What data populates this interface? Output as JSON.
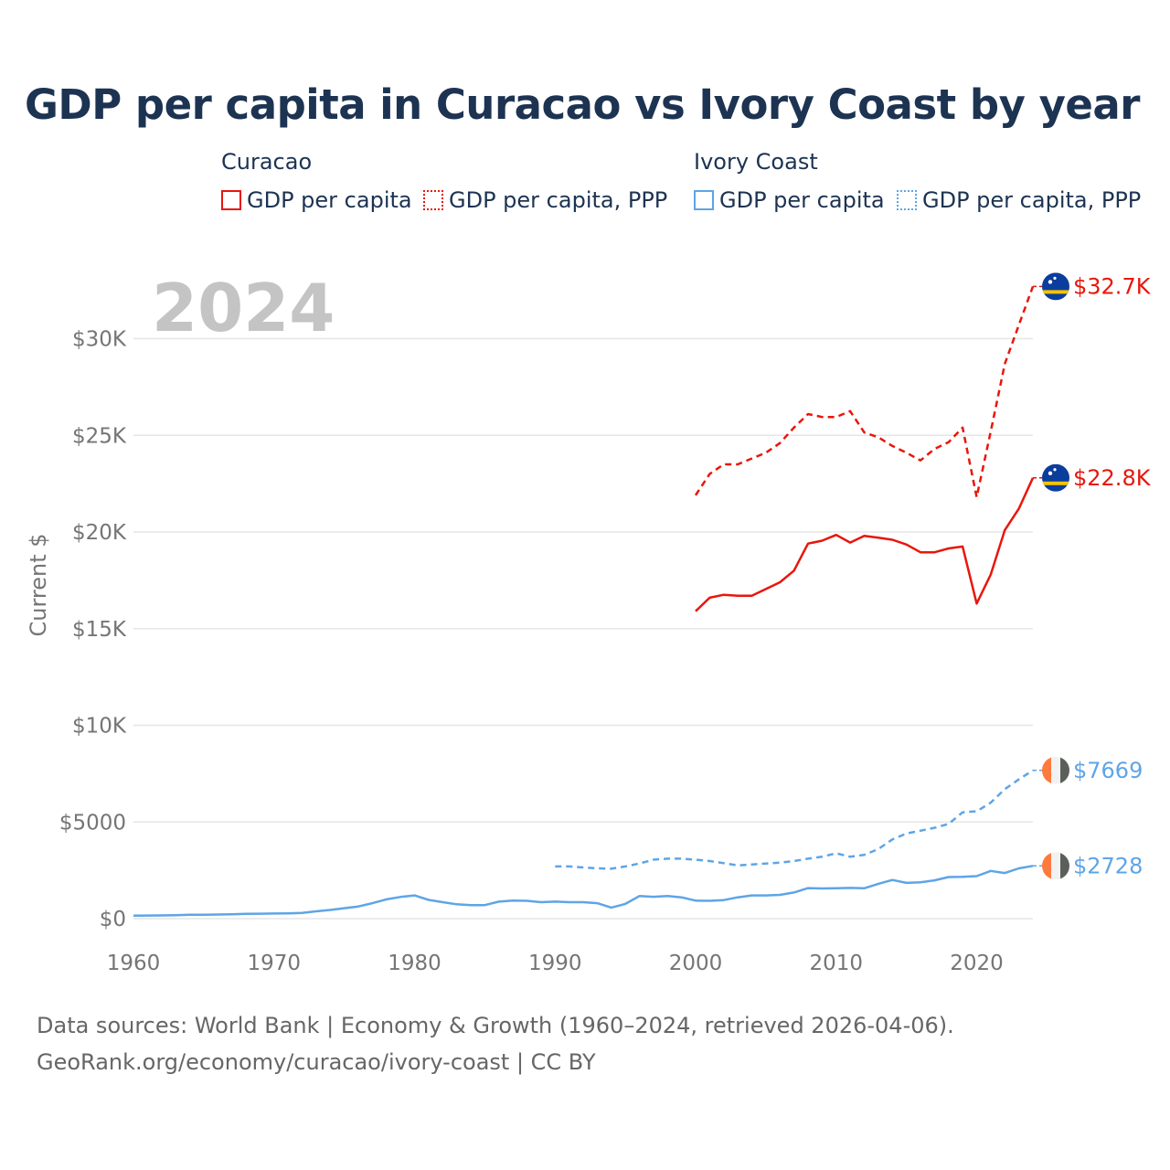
{
  "title": "GDP per capita in Curacao vs Ivory Coast by year",
  "legend": {
    "curacao": {
      "name": "Curacao",
      "gdp": "GDP per capita",
      "ppp": "GDP per capita, PPP",
      "color": "#e8160c"
    },
    "ivory": {
      "name": "Ivory Coast",
      "gdp": "GDP per capita",
      "ppp": "GDP per capita, PPP",
      "color": "#5ea5e6"
    }
  },
  "footer": {
    "line1": "Data sources: World Bank | Economy & Growth (1960–2024, retrieved 2026-04-06).",
    "line2": "GeoRank.org/economy/curacao/ivory-coast | CC BY"
  },
  "icons": [
    "curacao-flag-icon",
    "ivory-coast-flag-icon"
  ],
  "chart_data": {
    "type": "line",
    "year_label": "2024",
    "ylabel": "Current $",
    "xlim": [
      1960,
      2024
    ],
    "ylim": [
      0,
      33000
    ],
    "x_ticks": [
      "1960",
      "1970",
      "1980",
      "1990",
      "2000",
      "2010",
      "2020"
    ],
    "y_ticks": [
      {
        "value": 0,
        "label": "$0"
      },
      {
        "value": 5000,
        "label": "$5000"
      },
      {
        "value": 10000,
        "label": "$10K"
      },
      {
        "value": 15000,
        "label": "$15K"
      },
      {
        "value": 20000,
        "label": "$20K"
      },
      {
        "value": 25000,
        "label": "$25K"
      },
      {
        "value": 30000,
        "label": "$30K"
      }
    ],
    "series": [
      {
        "name": "Curacao GDP per capita",
        "country": "Curacao",
        "style": "solid",
        "color": "#e8160c",
        "end_label": "$22.8K",
        "flag": "curacao",
        "x": [
          2000,
          2001,
          2002,
          2003,
          2004,
          2005,
          2006,
          2007,
          2008,
          2009,
          2010,
          2011,
          2012,
          2013,
          2014,
          2015,
          2016,
          2017,
          2018,
          2019,
          2020,
          2021,
          2022,
          2023,
          2024
        ],
        "values": [
          15900,
          16600,
          16750,
          16700,
          16700,
          17050,
          17400,
          18000,
          19400,
          19550,
          19850,
          19450,
          19800,
          19700,
          19600,
          19350,
          18950,
          18950,
          19150,
          19250,
          16300,
          17800,
          20100,
          21200,
          22800
        ]
      },
      {
        "name": "Curacao GDP per capita, PPP",
        "country": "Curacao",
        "style": "dashed",
        "color": "#e8160c",
        "end_label": "$32.7K",
        "flag": "curacao",
        "x": [
          2000,
          2001,
          2002,
          2003,
          2004,
          2005,
          2006,
          2007,
          2008,
          2009,
          2010,
          2011,
          2012,
          2013,
          2014,
          2015,
          2016,
          2017,
          2018,
          2019,
          2020,
          2021,
          2022,
          2023,
          2024
        ],
        "values": [
          21900,
          23000,
          23500,
          23500,
          23800,
          24100,
          24600,
          25400,
          26100,
          25950,
          25950,
          26250,
          25150,
          24900,
          24450,
          24100,
          23700,
          24300,
          24650,
          25400,
          21800,
          25200,
          28700,
          30700,
          32700
        ]
      },
      {
        "name": "Ivory Coast GDP per capita",
        "country": "Ivory Coast",
        "style": "solid",
        "color": "#5ea5e6",
        "end_label": "$2728",
        "flag": "ivory",
        "x": [
          1960,
          1961,
          1962,
          1963,
          1964,
          1965,
          1966,
          1967,
          1968,
          1969,
          1970,
          1971,
          1972,
          1973,
          1974,
          1975,
          1976,
          1977,
          1978,
          1979,
          1980,
          1981,
          1982,
          1983,
          1984,
          1985,
          1986,
          1987,
          1988,
          1989,
          1990,
          1991,
          1992,
          1993,
          1994,
          1995,
          1996,
          1997,
          1998,
          1999,
          2000,
          2001,
          2002,
          2003,
          2004,
          2005,
          2006,
          2007,
          2008,
          2009,
          2010,
          2011,
          2012,
          2013,
          2014,
          2015,
          2016,
          2017,
          2018,
          2019,
          2020,
          2021,
          2022,
          2023,
          2024
        ],
        "values": [
          150,
          160,
          165,
          175,
          200,
          205,
          215,
          225,
          245,
          255,
          265,
          275,
          300,
          380,
          450,
          540,
          630,
          800,
          1000,
          1120,
          1200,
          970,
          850,
          740,
          700,
          700,
          880,
          930,
          920,
          850,
          880,
          850,
          850,
          800,
          570,
          760,
          1170,
          1130,
          1170,
          1100,
          930,
          920,
          960,
          1100,
          1200,
          1200,
          1230,
          1350,
          1580,
          1560,
          1570,
          1590,
          1570,
          1800,
          2000,
          1850,
          1880,
          1980,
          2150,
          2160,
          2200,
          2470,
          2360,
          2600,
          2728
        ]
      },
      {
        "name": "Ivory Coast GDP per capita, PPP",
        "country": "Ivory Coast",
        "style": "dashed",
        "color": "#5ea5e6",
        "end_label": "$7669",
        "flag": "ivory",
        "x": [
          1990,
          1991,
          1992,
          1993,
          1994,
          1995,
          1996,
          1997,
          1998,
          1999,
          2000,
          2001,
          2002,
          2003,
          2004,
          2005,
          2006,
          2007,
          2008,
          2009,
          2010,
          2011,
          2012,
          2013,
          2014,
          2015,
          2016,
          2017,
          2018,
          2019,
          2020,
          2021,
          2022,
          2023,
          2024
        ],
        "values": [
          2700,
          2700,
          2650,
          2600,
          2580,
          2700,
          2850,
          3050,
          3100,
          3100,
          3050,
          2980,
          2870,
          2750,
          2800,
          2850,
          2900,
          2980,
          3100,
          3200,
          3380,
          3200,
          3300,
          3600,
          4100,
          4400,
          4550,
          4700,
          4900,
          5500,
          5550,
          6000,
          6700,
          7200,
          7669
        ]
      }
    ]
  }
}
